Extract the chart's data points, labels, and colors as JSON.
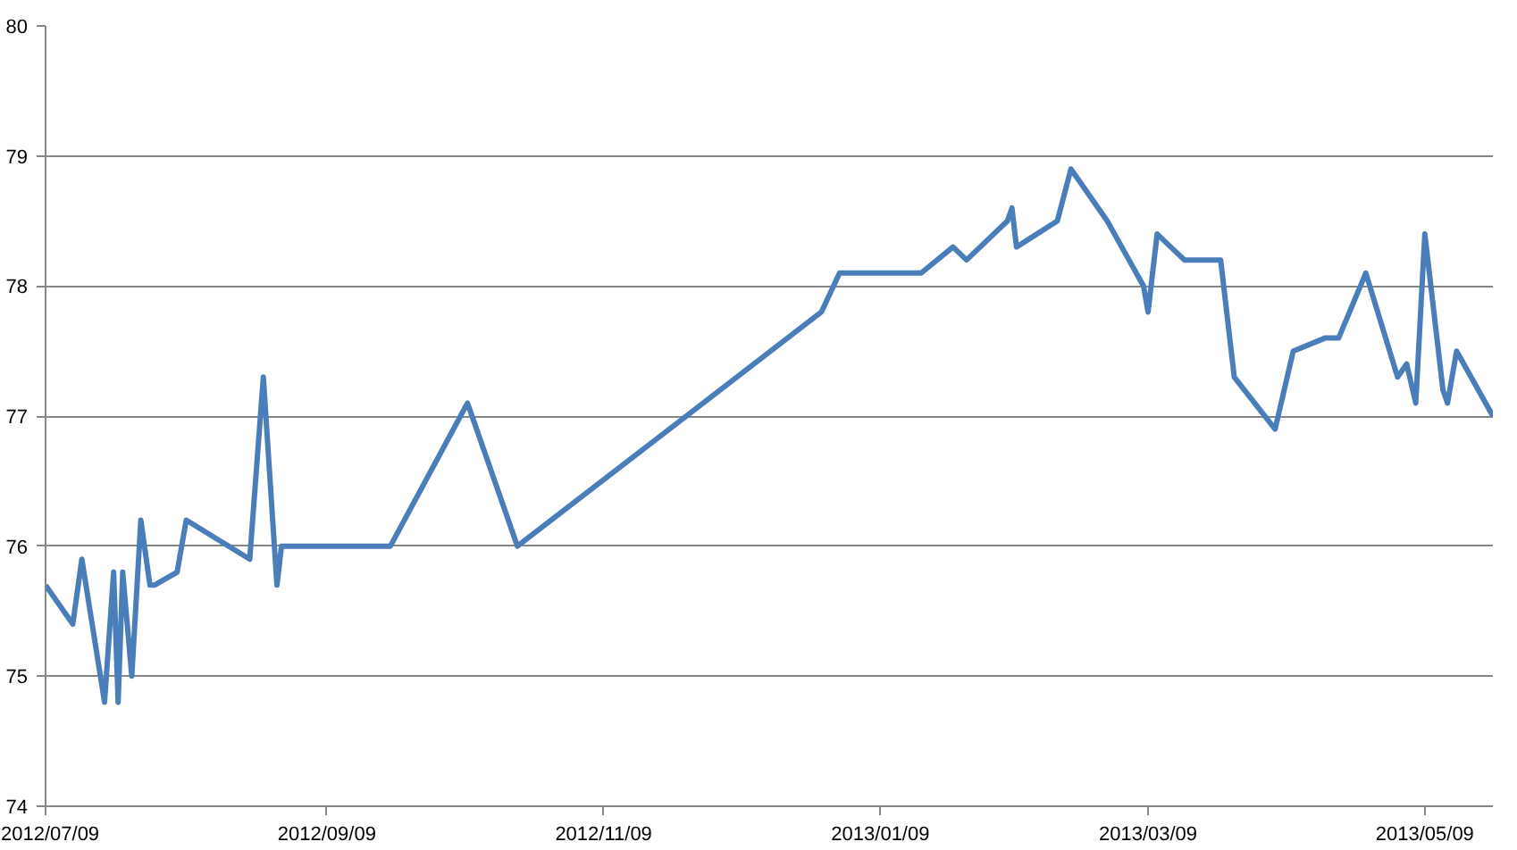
{
  "chart_data": {
    "type": "line",
    "x": [
      "2012-07-09",
      "2012-07-15",
      "2012-07-17",
      "2012-07-22",
      "2012-07-24",
      "2012-07-25",
      "2012-07-26",
      "2012-07-28",
      "2012-07-30",
      "2012-08-01",
      "2012-08-02",
      "2012-08-07",
      "2012-08-09",
      "2012-08-23",
      "2012-08-26",
      "2012-08-29",
      "2012-08-30",
      "2012-09-23",
      "2012-10-10",
      "2012-10-21",
      "2012-12-27",
      "2012-12-31",
      "2013-01-18",
      "2013-01-25",
      "2013-01-28",
      "2013-01-31",
      "2013-02-06",
      "2013-02-07",
      "2013-02-08",
      "2013-02-17",
      "2013-02-20",
      "2013-02-28",
      "2013-03-08",
      "2013-03-09",
      "2013-03-11",
      "2013-03-17",
      "2013-03-25",
      "2013-03-28",
      "2013-04-06",
      "2013-04-10",
      "2013-04-17",
      "2013-04-20",
      "2013-04-26",
      "2013-05-03",
      "2013-05-05",
      "2013-05-07",
      "2013-05-09",
      "2013-05-13",
      "2013-05-14",
      "2013-05-16",
      "2013-05-24"
    ],
    "series": [
      {
        "color": "#4a7ebb",
        "values": [
          75.7,
          75.4,
          75.9,
          74.8,
          75.8,
          74.8,
          75.8,
          75.0,
          76.2,
          75.7,
          75.7,
          75.8,
          76.2,
          75.9,
          77.3,
          75.7,
          76.0,
          76.0,
          77.1,
          76.0,
          77.8,
          78.1,
          78.1,
          78.3,
          78.2,
          78.3,
          78.5,
          78.6,
          78.3,
          78.5,
          78.9,
          78.5,
          78.0,
          77.8,
          78.4,
          78.2,
          78.2,
          77.3,
          76.9,
          77.5,
          77.6,
          77.6,
          78.1,
          77.3,
          77.4,
          77.1,
          78.4,
          77.2,
          77.1,
          77.5,
          77.0
        ]
      }
    ],
    "xlim": [
      "2012-07-09",
      "2013-05-24"
    ],
    "xticks": [
      {
        "value": "2012-07-09",
        "label": "2012/07/09"
      },
      {
        "value": "2012-09-09",
        "label": "2012/09/09"
      },
      {
        "value": "2012-11-09",
        "label": "2012/11/09"
      },
      {
        "value": "2013-01-09",
        "label": "2013/01/09"
      },
      {
        "value": "2013-03-09",
        "label": "2013/03/09"
      },
      {
        "value": "2013-05-09",
        "label": "2013/05/09"
      }
    ],
    "ylim": [
      74,
      80
    ],
    "yticks": [
      74,
      75,
      76,
      77,
      78,
      79,
      80
    ],
    "grid": "y",
    "marker": "none",
    "line_style": "solid"
  }
}
